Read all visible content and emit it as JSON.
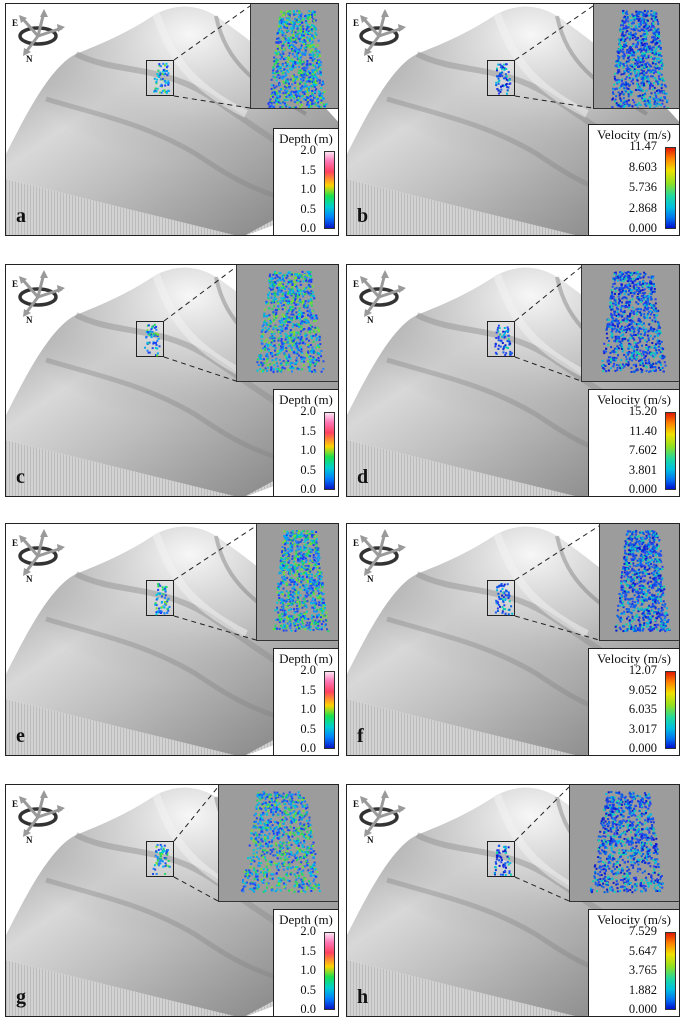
{
  "panels": [
    {
      "label": "a",
      "legend": {
        "title": "Depth (m)",
        "ticks": [
          "2.0",
          "1.5",
          "1.0",
          "0.5",
          "0.0"
        ],
        "kind": "depth"
      }
    },
    {
      "label": "b",
      "legend": {
        "title": "Velocity (m/s)",
        "ticks": [
          "11.47",
          "8.603",
          "5.736",
          "2.868",
          "0.000"
        ],
        "kind": "velocity"
      }
    },
    {
      "label": "c",
      "legend": {
        "title": "Depth (m)",
        "ticks": [
          "2.0",
          "1.5",
          "1.0",
          "0.5",
          "0.0"
        ],
        "kind": "depth"
      }
    },
    {
      "label": "d",
      "legend": {
        "title": "Velocity (m/s)",
        "ticks": [
          "15.20",
          "11.40",
          "7.602",
          "3.801",
          "0.000"
        ],
        "kind": "velocity"
      }
    },
    {
      "label": "e",
      "legend": {
        "title": "Depth (m)",
        "ticks": [
          "2.0",
          "1.5",
          "1.0",
          "0.5",
          "0.0"
        ],
        "kind": "depth"
      }
    },
    {
      "label": "f",
      "legend": {
        "title": "Velocity (m/s)",
        "ticks": [
          "12.07",
          "9.052",
          "6.035",
          "3.017",
          "0.000"
        ],
        "kind": "velocity"
      }
    },
    {
      "label": "g",
      "legend": {
        "title": "Depth (m)",
        "ticks": [
          "2.0",
          "1.5",
          "1.0",
          "0.5",
          "0.0"
        ],
        "kind": "depth"
      }
    },
    {
      "label": "h",
      "legend": {
        "title": "Velocity (m/s)",
        "ticks": [
          "7.529",
          "5.647",
          "3.765",
          "1.882",
          "0.000"
        ],
        "kind": "velocity"
      }
    }
  ],
  "compass": {
    "east": "E",
    "north": "N"
  },
  "colors": {
    "terrain_light": "#f2f2f2",
    "terrain_dark": "#6e6e6e",
    "base": "#cfcfcf"
  }
}
